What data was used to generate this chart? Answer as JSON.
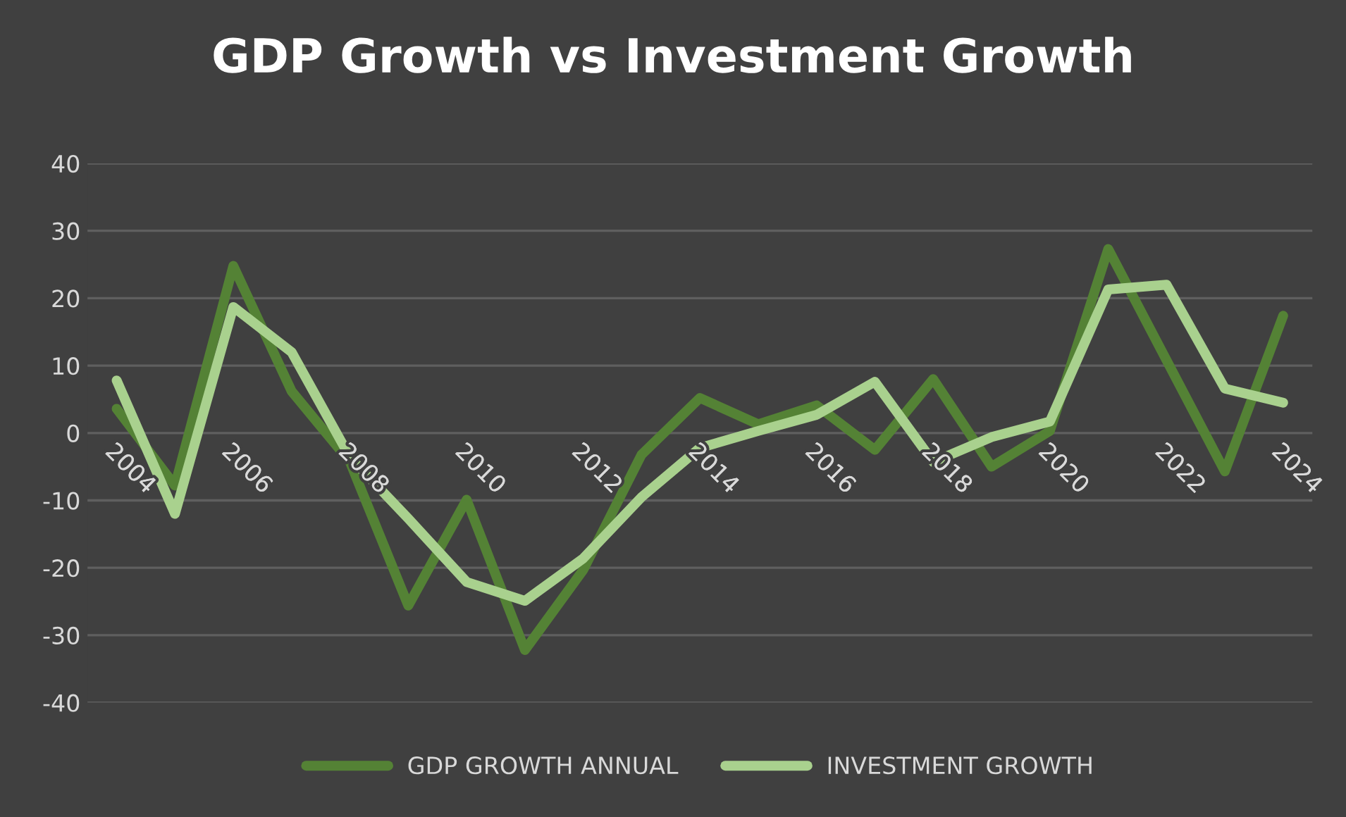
{
  "chart_data": {
    "type": "line",
    "title": "GDP Growth vs Investment Growth",
    "categories": [
      "2004",
      null,
      "2006",
      null,
      "2008",
      null,
      "2010",
      null,
      "2012",
      null,
      "2014",
      null,
      "2016",
      null,
      "2018",
      null,
      "2020",
      null,
      "2022",
      null,
      "2024"
    ],
    "series": [
      {
        "name": "GDP GROWTH ANNUAL",
        "color": "#548235",
        "values": [
          3.6,
          -7.8,
          24.8,
          6.2,
          -4.3,
          -25.6,
          -9.9,
          -32.2,
          -20.3,
          -3.2,
          5.2,
          1.3,
          4.1,
          -2.5,
          8.0,
          -5.0,
          0.3,
          27.3,
          10.8,
          -5.7,
          17.4
        ]
      },
      {
        "name": "INVESTMENT GROWTH",
        "color": "#a9d18e",
        "values": [
          7.8,
          -12.0,
          18.7,
          12.0,
          -3.6,
          -12.7,
          -22.1,
          -24.9,
          -18.6,
          -9.5,
          -2.2,
          0.3,
          2.7,
          7.6,
          -4.3,
          -0.6,
          1.7,
          21.3,
          22.0,
          6.6,
          4.5
        ]
      }
    ],
    "ylim": [
      -40,
      40
    ],
    "yticks": [
      -40,
      -30,
      -20,
      -10,
      0,
      10,
      20,
      30,
      40
    ],
    "grid": "y",
    "legend": "bottom",
    "marker": "none",
    "line_style": "solid"
  }
}
